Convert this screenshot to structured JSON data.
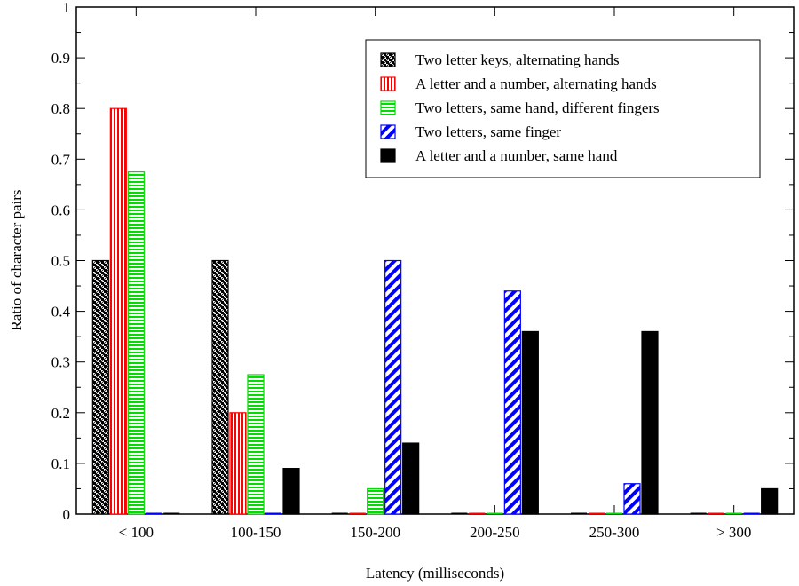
{
  "chart_data": {
    "type": "bar",
    "title": "",
    "xlabel": "Latency (milliseconds)",
    "ylabel": "Ratio of character pairs",
    "categories": [
      "< 100",
      "100-150",
      "150-200",
      "200-250",
      "250-300",
      "> 300"
    ],
    "ylim": [
      0,
      1
    ],
    "yticks": [
      "0",
      "0.1",
      "0.2",
      "0.3",
      "0.4",
      "0.5",
      "0.6",
      "0.7",
      "0.8",
      "0.9",
      "1"
    ],
    "grid": false,
    "legend_position": "top-right",
    "series": [
      {
        "name": "Two letter keys, alternating hands",
        "values": [
          0.5,
          0.5,
          0,
          0,
          0,
          0
        ],
        "pattern": "checker",
        "color": "#000000"
      },
      {
        "name": "A letter and a number, alternating hands",
        "values": [
          0.8,
          0.2,
          0,
          0,
          0,
          0
        ],
        "pattern": "vertical",
        "color": "#ff0000"
      },
      {
        "name": "Two letters, same hand, different fingers",
        "values": [
          0.675,
          0.275,
          0.05,
          0,
          0,
          0
        ],
        "pattern": "horizontal",
        "color": "#00dd00"
      },
      {
        "name": "Two letters, same finger",
        "values": [
          0,
          0,
          0.5,
          0.44,
          0.06,
          0
        ],
        "pattern": "diagonal",
        "color": "#0000ff"
      },
      {
        "name": "A letter and a number, same hand",
        "values": [
          0,
          0.09,
          0.14,
          0.36,
          0.36,
          0.05
        ],
        "pattern": "solid",
        "color": "#000000"
      }
    ]
  }
}
